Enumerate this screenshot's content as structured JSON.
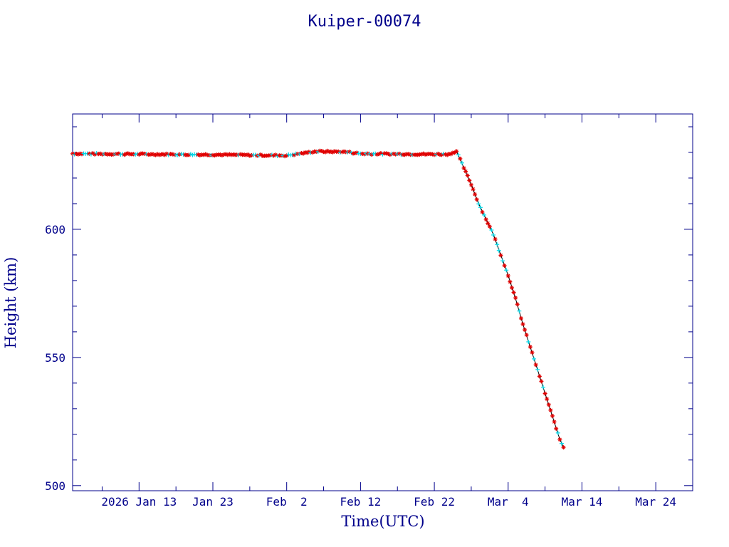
{
  "chart_data": {
    "type": "scatter",
    "title": "Kuiper-00074",
    "xlabel": "Time(UTC)",
    "ylabel": "Height (km)",
    "x_tick_labels": [
      "2026 Jan 13",
      "Jan 23",
      "Feb  2",
      "Feb 12",
      "Feb 22",
      "Mar  4",
      "Mar 14",
      "Mar 24"
    ],
    "x_tick_dates": [
      "2026-01-13",
      "2026-01-23",
      "2026-02-02",
      "2026-02-12",
      "2026-02-22",
      "2026-03-04",
      "2026-03-14",
      "2026-03-24"
    ],
    "xlim": [
      "2026-01-04",
      "2026-03-29"
    ],
    "y_tick_labels": [
      "500",
      "550",
      "600"
    ],
    "y_ticks": [
      500,
      550,
      600
    ],
    "ylim": [
      498,
      645
    ],
    "grid": false,
    "colors": {
      "axes": "#00008b",
      "line": "#000000",
      "series_red": "#e00000",
      "series_cyan": "#00d8e8"
    },
    "series": [
      {
        "values": [
          [
            "2026-01-04",
            629.5
          ],
          [
            "2026-01-09",
            629.4
          ],
          [
            "2026-01-14",
            629.3
          ],
          [
            "2026-01-19",
            629.2
          ],
          [
            "2026-01-24",
            629.1
          ],
          [
            "2026-01-29",
            628.9
          ],
          [
            "2026-02-02",
            628.8
          ],
          [
            "2026-02-06",
            630.4
          ],
          [
            "2026-02-10",
            630.2
          ],
          [
            "2026-02-12",
            629.5
          ],
          [
            "2026-02-16",
            629.4
          ],
          [
            "2026-02-20",
            629.3
          ],
          [
            "2026-02-24",
            629.3
          ],
          [
            "2026-02-25",
            630.5
          ],
          [
            "2026-02-26",
            624.0
          ],
          [
            "2026-02-27",
            617.5
          ],
          [
            "2026-02-28",
            610.0
          ],
          [
            "2026-03-01",
            604.0
          ],
          [
            "2026-03-02",
            598.0
          ],
          [
            "2026-03-03",
            590.0
          ],
          [
            "2026-03-04",
            582.0
          ],
          [
            "2026-03-05",
            573.0
          ],
          [
            "2026-03-06",
            563.0
          ],
          [
            "2026-03-07",
            554.0
          ],
          [
            "2026-03-08",
            545.0
          ],
          [
            "2026-03-09",
            536.0
          ],
          [
            "2026-03-10",
            527.0
          ],
          [
            "2026-03-11",
            518.0
          ],
          [
            "2026-03-11T12:00",
            515.0
          ]
        ]
      }
    ]
  }
}
